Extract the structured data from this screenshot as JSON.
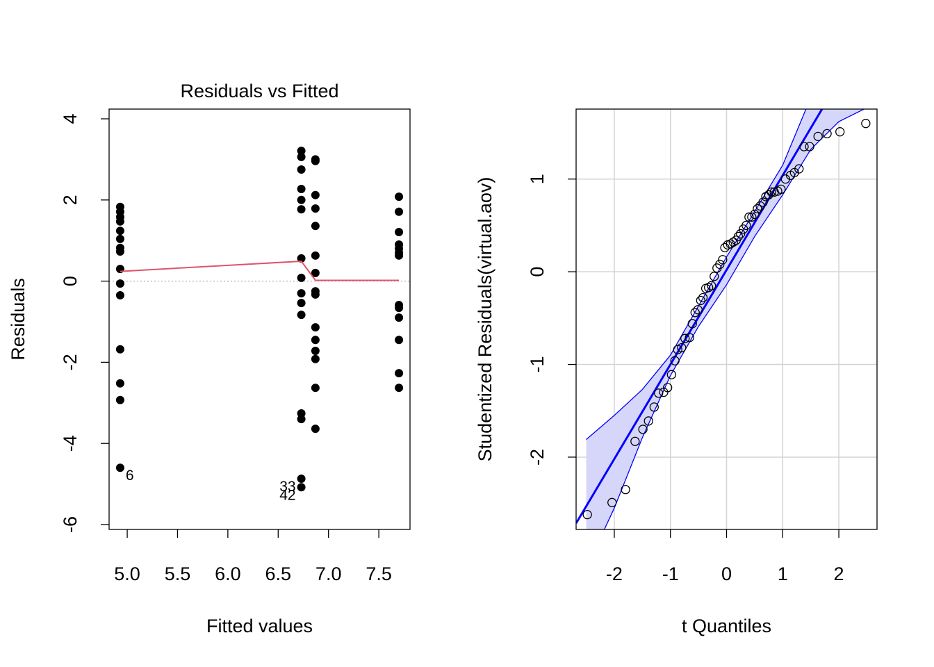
{
  "chart_data": [
    {
      "type": "scatter",
      "title": "Residuals vs Fitted",
      "xlabel": "Fitted values",
      "ylabel": "Residuals",
      "xlim": [
        4.82,
        7.81
      ],
      "ylim": [
        -6.12,
        4.24
      ],
      "xticks": [
        {
          "value": 5,
          "label": "5.0"
        },
        {
          "value": 5.5,
          "label": "5.5"
        },
        {
          "value": 6,
          "label": "6.0"
        },
        {
          "value": 6.5,
          "label": "6.5"
        },
        {
          "value": 7,
          "label": "7.0"
        },
        {
          "value": 7.5,
          "label": "7.5"
        }
      ],
      "yticks": [
        -6,
        -4,
        -2,
        0,
        2,
        4
      ],
      "color": "#000000",
      "x": [
        4.93,
        4.93,
        4.93,
        4.93,
        4.93,
        4.93,
        4.93,
        4.93,
        4.93,
        4.93,
        4.93,
        4.93,
        4.93,
        4.93,
        4.93,
        6.73,
        6.73,
        6.73,
        6.73,
        6.73,
        6.73,
        6.73,
        6.73,
        6.73,
        6.73,
        6.73,
        6.73,
        6.73,
        6.73,
        6.73,
        6.87,
        6.87,
        6.87,
        6.87,
        6.87,
        6.87,
        6.87,
        6.87,
        6.87,
        6.87,
        6.87,
        6.87,
        6.87,
        6.87,
        6.87,
        7.7,
        7.7,
        7.7,
        7.7,
        7.7,
        7.7,
        7.7,
        7.7,
        7.7,
        7.7,
        7.7,
        7.7,
        7.7
      ],
      "values": [
        1.83,
        1.71,
        1.58,
        1.47,
        1.24,
        1.04,
        0.82,
        0.73,
        0.3,
        -0.06,
        -0.35,
        -1.68,
        -2.52,
        -2.93,
        -4.6,
        3.21,
        3.06,
        2.75,
        2.27,
        2.0,
        1.77,
        0.56,
        0.08,
        -0.3,
        -0.54,
        -0.83,
        -3.26,
        -3.4,
        -4.87,
        -5.08,
        3.0,
        2.96,
        2.12,
        1.79,
        1.36,
        0.63,
        0.2,
        -0.25,
        -0.33,
        -1.14,
        -1.45,
        -1.72,
        -1.92,
        -2.63,
        -3.64,
        2.08,
        1.71,
        1.21,
        0.9,
        0.8,
        0.7,
        0.63,
        -0.59,
        -0.66,
        -0.9,
        -1.45,
        -2.27,
        -2.63
      ],
      "zero_line": 0,
      "smooth": {
        "x": [
          4.93,
          6.73,
          6.87,
          7.7
        ],
        "values": [
          0.24,
          0.49,
          0.02,
          0.02
        ],
        "color": "#df536b"
      },
      "annotations": [
        {
          "text": "6",
          "x": 4.93,
          "y": -4.6
        },
        {
          "text": "33",
          "x": 6.73,
          "y": -4.87
        },
        {
          "text": "42",
          "x": 6.73,
          "y": -5.08
        }
      ]
    },
    {
      "type": "qq",
      "xlabel": "t Quantiles",
      "ylabel": "Studentized Residuals(virtual.aov)",
      "xlim": [
        -2.68,
        2.68
      ],
      "ylim": [
        -2.78,
        1.755
      ],
      "xticks": [
        -2,
        -1,
        0,
        1,
        2
      ],
      "yticks": [
        -2,
        -1,
        0,
        1
      ],
      "grid": true,
      "color": "#000000",
      "x": [
        -2.48,
        -2.04,
        -1.8,
        -1.63,
        -1.49,
        -1.39,
        -1.29,
        -1.21,
        -1.12,
        -1.05,
        -0.98,
        -0.92,
        -0.87,
        -0.8,
        -0.74,
        -0.66,
        -0.61,
        -0.56,
        -0.51,
        -0.46,
        -0.42,
        -0.37,
        -0.32,
        -0.27,
        -0.22,
        -0.17,
        -0.12,
        -0.07,
        -0.03,
        0.02,
        0.07,
        0.12,
        0.17,
        0.21,
        0.25,
        0.3,
        0.35,
        0.4,
        0.45,
        0.5,
        0.55,
        0.6,
        0.65,
        0.7,
        0.75,
        0.8,
        0.85,
        0.91,
        0.97,
        1.05,
        1.14,
        1.21,
        1.29,
        1.38,
        1.48,
        1.63,
        1.79,
        2.02,
        2.48
      ],
      "values": [
        -2.62,
        -2.49,
        -2.35,
        -1.83,
        -1.7,
        -1.61,
        -1.46,
        -1.31,
        -1.3,
        -1.25,
        -1.11,
        -0.96,
        -0.84,
        -0.82,
        -0.72,
        -0.71,
        -0.56,
        -0.44,
        -0.41,
        -0.31,
        -0.28,
        -0.18,
        -0.17,
        -0.15,
        -0.05,
        0.04,
        0.08,
        0.13,
        0.26,
        0.29,
        0.3,
        0.32,
        0.34,
        0.38,
        0.41,
        0.46,
        0.5,
        0.59,
        0.59,
        0.62,
        0.68,
        0.71,
        0.75,
        0.81,
        0.83,
        0.86,
        0.86,
        0.87,
        0.89,
        1.0,
        1.04,
        1.07,
        1.11,
        1.35,
        1.35,
        1.46,
        1.49,
        1.51,
        1.6
      ],
      "reference_line": {
        "intercept": 0.02,
        "slope": 1.02,
        "color": "#0000ff"
      },
      "band": {
        "x": [
          -2.5,
          -2.0,
          -1.5,
          -1.0,
          -0.5,
          0,
          0.5,
          1.0,
          1.5,
          2.0,
          2.5
        ],
        "lower": [
          -3.2,
          -2.55,
          -1.79,
          -1.12,
          -0.59,
          -0.14,
          0.38,
          0.83,
          1.32,
          1.62,
          1.77
        ],
        "upper": [
          -1.81,
          -1.55,
          -1.27,
          -0.9,
          -0.37,
          0.16,
          0.65,
          1.15,
          1.88,
          2.4,
          2.9
        ],
        "color": "#0000ff",
        "fill": "#d6d6fa"
      }
    }
  ]
}
